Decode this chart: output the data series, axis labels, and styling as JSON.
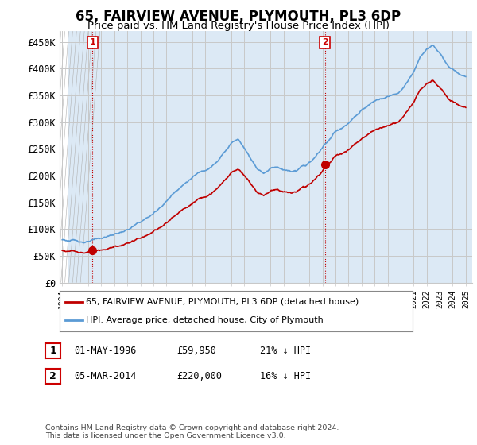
{
  "title": "65, FAIRVIEW AVENUE, PLYMOUTH, PL3 6DP",
  "subtitle": "Price paid vs. HM Land Registry's House Price Index (HPI)",
  "title_fontsize": 12,
  "subtitle_fontsize": 10,
  "ylim": [
    0,
    470000
  ],
  "yticks": [
    0,
    50000,
    100000,
    150000,
    200000,
    250000,
    300000,
    350000,
    400000,
    450000
  ],
  "ytick_labels": [
    "£0",
    "£50K",
    "£100K",
    "£150K",
    "£200K",
    "£250K",
    "£300K",
    "£350K",
    "£400K",
    "£450K"
  ],
  "sale1_date": 1996.33,
  "sale1_price": 59950,
  "sale2_date": 2014.17,
  "sale2_price": 220000,
  "hpi_color": "#5b9bd5",
  "price_color": "#c00000",
  "vline_color": "#c00000",
  "grid_color": "#c8c8c8",
  "bg_hatch_color": "#e0e0e0",
  "bg_main_color": "#dce9f5",
  "legend_label_price": "65, FAIRVIEW AVENUE, PLYMOUTH, PL3 6DP (detached house)",
  "legend_label_hpi": "HPI: Average price, detached house, City of Plymouth",
  "table_row1": [
    "1",
    "01-MAY-1996",
    "£59,950",
    "21% ↓ HPI"
  ],
  "table_row2": [
    "2",
    "05-MAR-2014",
    "£220,000",
    "16% ↓ HPI"
  ],
  "footer": "Contains HM Land Registry data © Crown copyright and database right 2024.\nThis data is licensed under the Open Government Licence v3.0.",
  "xmin": 1993.8,
  "xmax": 2025.5
}
